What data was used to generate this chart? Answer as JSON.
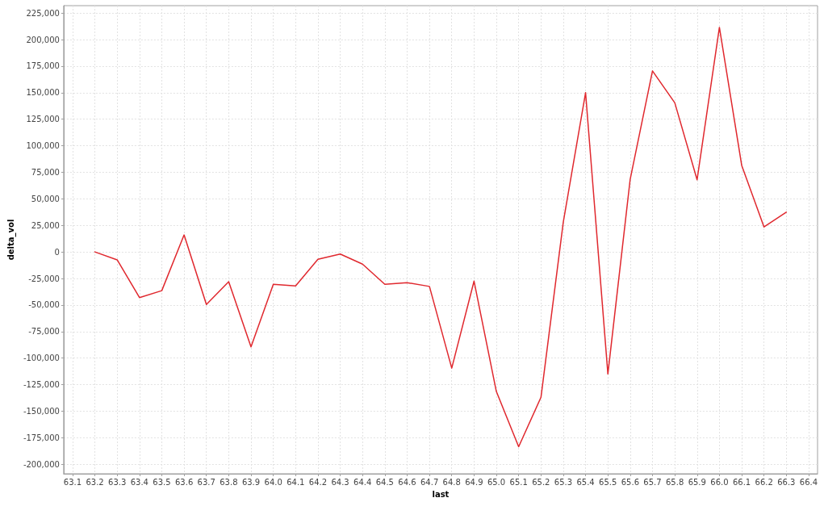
{
  "chart_data": {
    "type": "line",
    "xlabel": "last",
    "ylabel": "delta_vol",
    "x": [
      63.2,
      63.3,
      63.4,
      63.5,
      63.6,
      63.7,
      63.8,
      63.9,
      64.0,
      64.1,
      64.2,
      64.3,
      64.4,
      64.5,
      64.6,
      64.7,
      64.8,
      64.9,
      65.0,
      65.1,
      65.2,
      65.3,
      65.4,
      65.5,
      65.6,
      65.7,
      65.8,
      65.9,
      66.0,
      66.1,
      66.2,
      66.3
    ],
    "series": [
      {
        "color": "#e0282e",
        "values": [
          0,
          -7500,
          -43000,
          -36500,
          16000,
          -49500,
          -28000,
          -89500,
          -30500,
          -32000,
          -7000,
          -2000,
          -11500,
          -30500,
          -29000,
          -32500,
          -109500,
          -27500,
          -131500,
          -183500,
          -137000,
          28000,
          150000,
          -115000,
          68500,
          170500,
          140500,
          68000,
          211500,
          81500,
          23500,
          37500
        ]
      }
    ],
    "xlim": [
      63.06,
      66.44
    ],
    "xticks": [
      63.1,
      63.2,
      63.3,
      63.4,
      63.5,
      63.6,
      63.7,
      63.8,
      63.9,
      {
        "value": 64,
        "label": "64.0"
      },
      64.1,
      64.2,
      64.3,
      64.4,
      64.5,
      64.6,
      64.7,
      64.8,
      64.9,
      {
        "value": 65,
        "label": "65.0"
      },
      65.1,
      65.2,
      65.3,
      65.4,
      65.5,
      65.6,
      65.7,
      65.8,
      65.9,
      {
        "value": 66,
        "label": "66.0"
      },
      66.1,
      66.2,
      66.3,
      66.4
    ],
    "ylim": [
      -209000,
      232000
    ],
    "yticks": [
      {
        "value": -200000,
        "label": "-200,000"
      },
      {
        "value": -175000,
        "label": "-175,000"
      },
      {
        "value": -150000,
        "label": "-150,000"
      },
      {
        "value": -125000,
        "label": "-125,000"
      },
      {
        "value": -100000,
        "label": "-100,000"
      },
      {
        "value": -75000,
        "label": "-75,000"
      },
      {
        "value": -50000,
        "label": "-50,000"
      },
      {
        "value": -25000,
        "label": "-25,000"
      },
      0,
      {
        "value": 25000,
        "label": "25,000"
      },
      {
        "value": 50000,
        "label": "50,000"
      },
      {
        "value": 75000,
        "label": "75,000"
      },
      {
        "value": 100000,
        "label": "100,000"
      },
      {
        "value": 125000,
        "label": "125,000"
      },
      {
        "value": 150000,
        "label": "150,000"
      },
      {
        "value": 175000,
        "label": "175,000"
      },
      {
        "value": 200000,
        "label": "200,000"
      },
      {
        "value": 225000,
        "label": "225,000"
      }
    ],
    "grid": true,
    "line_style": "solid"
  }
}
